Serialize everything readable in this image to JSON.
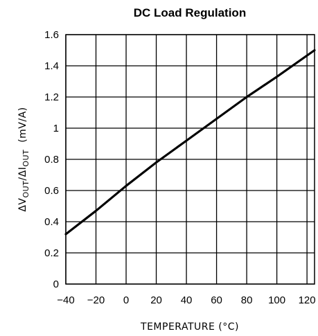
{
  "chart_data": {
    "type": "line",
    "title": "DC Load Regulation",
    "xlabel": "TEMPERATURE (°C)",
    "ylabel": {
      "prefix": "ΔV",
      "sub1": "OUT",
      "mid": "/ΔI",
      "sub2": "OUT",
      "suffix": "  (mV/A)"
    },
    "xlim": [
      -40,
      125
    ],
    "ylim": [
      0,
      1.6
    ],
    "x_ticks": [
      -40,
      -20,
      0,
      20,
      40,
      60,
      80,
      100,
      120
    ],
    "y_ticks": [
      0,
      0.2,
      0.4,
      0.6,
      0.8,
      1,
      1.2,
      1.4,
      1.6
    ],
    "x_tick_labels": [
      "−40",
      "−20",
      "0",
      "20",
      "40",
      "60",
      "80",
      "100",
      "120"
    ],
    "y_tick_labels": [
      "0",
      "0.2",
      "0.4",
      "0.6",
      "0.8",
      "1",
      "1.2",
      "1.4",
      "1.6"
    ],
    "grid": true,
    "series": [
      {
        "x": [
          -40,
          -20,
          0,
          20,
          40,
          60,
          80,
          100,
          125
        ],
        "y": [
          0.32,
          0.47,
          0.63,
          0.78,
          0.92,
          1.06,
          1.2,
          1.33,
          1.5
        ]
      }
    ]
  }
}
